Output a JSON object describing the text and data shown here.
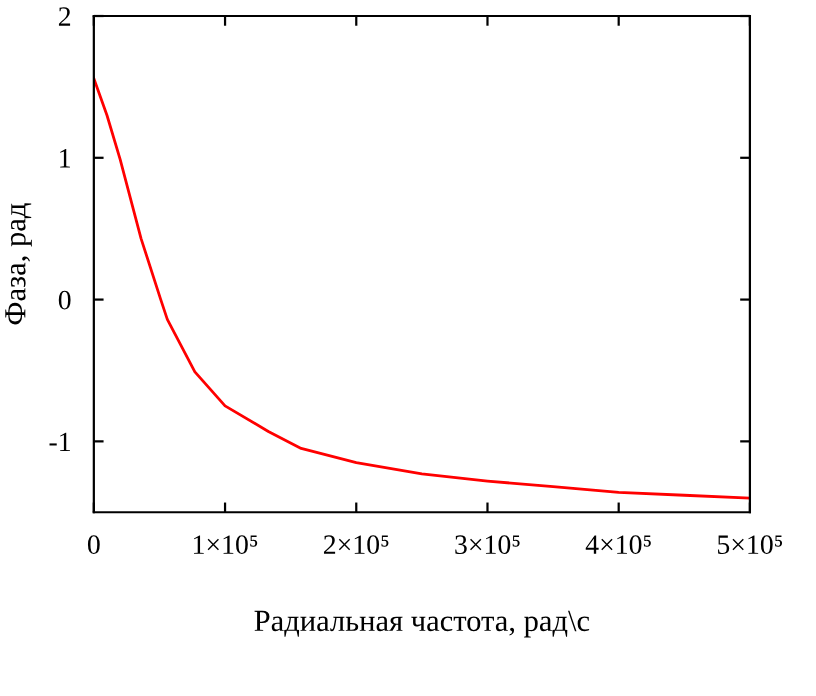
{
  "chart_data": {
    "type": "line",
    "xlabel": "Радиальная частота, рад\\с",
    "ylabel": "Фаза, рад",
    "x": [
      0,
      10000,
      20000,
      36000,
      51000,
      56000,
      77000,
      100000,
      133000,
      158000,
      200000,
      250000,
      300000,
      350000,
      400000,
      450000,
      500000
    ],
    "series": [
      {
        "color": "#ff0000",
        "values": [
          1.56,
          1.3,
          0.99,
          0.43,
          0,
          -0.14,
          -0.51,
          -0.75,
          -0.93,
          -1.05,
          -1.15,
          -1.23,
          -1.28,
          -1.32,
          -1.36,
          -1.38,
          -1.4
        ]
      }
    ],
    "xlim": [
      0,
      500000
    ],
    "ylim": [
      -1.5,
      2
    ],
    "xticks": [
      0,
      {
        "value": 100000,
        "label": "1×10⁵"
      },
      {
        "value": 200000,
        "label": "2×10⁵"
      },
      {
        "value": 300000,
        "label": "3×10⁵"
      },
      {
        "value": 400000,
        "label": "4×10⁵"
      },
      {
        "value": 500000,
        "label": "5×10⁵"
      }
    ],
    "yticks": [
      {
        "value": -1,
        "label": "-1"
      },
      0,
      1,
      2
    ],
    "grid": false,
    "legend": false,
    "line_style": "solid",
    "marker": "none"
  }
}
